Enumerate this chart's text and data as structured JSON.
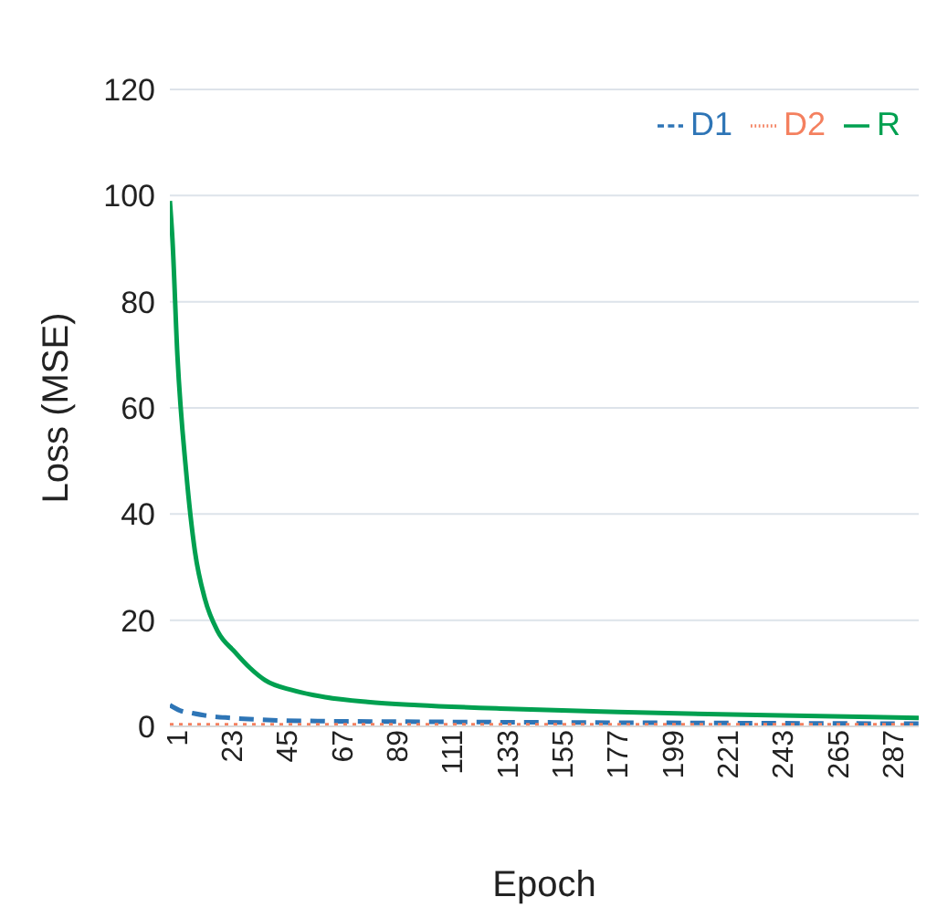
{
  "chart_data": {
    "type": "line",
    "xlabel": "Epoch",
    "ylabel": "Loss (MSE)",
    "xlim": [
      1,
      300
    ],
    "xticks": [
      1,
      23,
      45,
      67,
      89,
      111,
      133,
      155,
      177,
      199,
      221,
      243,
      265,
      287
    ],
    "ylim": [
      0,
      120
    ],
    "yticks": [
      0,
      20,
      40,
      60,
      80,
      100,
      120
    ],
    "grid": "y",
    "legend": "top right",
    "marker": "none",
    "series": [
      {
        "name": "D1",
        "color": "#2e75b6",
        "line_style": "dashed",
        "x": [
          1,
          5,
          10,
          16,
          25,
          40,
          60,
          90,
          130,
          180,
          240,
          300
        ],
        "values": [
          4,
          3,
          2.5,
          2,
          1.6,
          1.2,
          1,
          0.9,
          0.8,
          0.7,
          0.6,
          0.5
        ]
      },
      {
        "name": "D2",
        "color": "#f4805f",
        "line_style": "dotted",
        "x": [
          1,
          100,
          200,
          300
        ],
        "values": [
          0.2,
          0.2,
          0.2,
          0.2
        ]
      },
      {
        "name": "R",
        "color": "#00a050",
        "line_style": "solid",
        "x": [
          1,
          2,
          4,
          7.5,
          11,
          15,
          20,
          27,
          33,
          39,
          50,
          63,
          80,
          100,
          136,
          180,
          240,
          300
        ],
        "values": [
          99,
          92,
          70,
          48,
          33,
          24,
          18,
          14,
          11,
          8.7,
          6.8,
          5.5,
          4.6,
          4,
          3.3,
          2.7,
          2.1,
          1.6
        ]
      }
    ]
  }
}
